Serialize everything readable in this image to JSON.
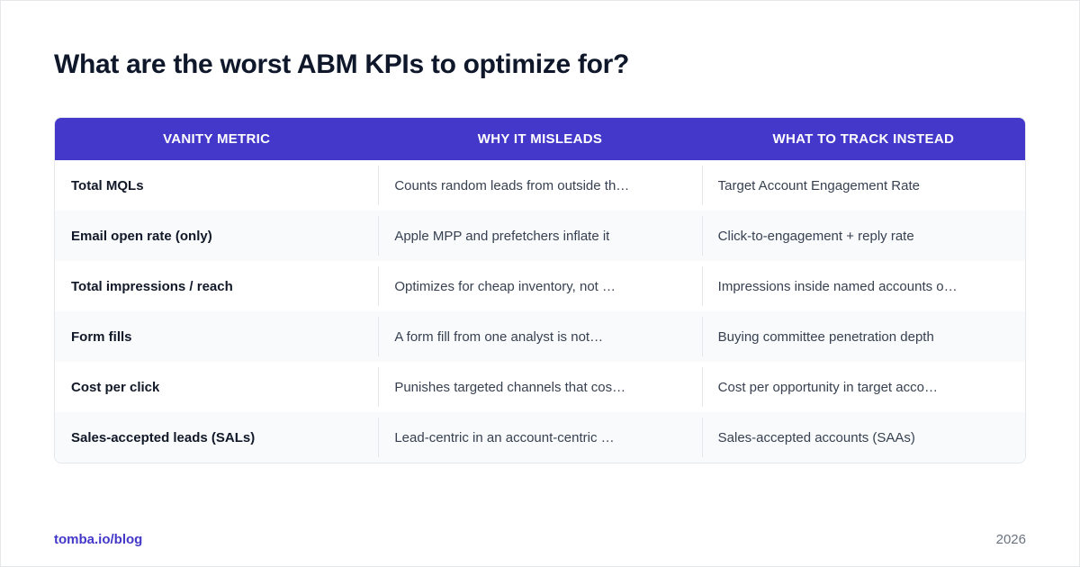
{
  "title": "What are the worst ABM KPIs to optimize for?",
  "table": {
    "headers": [
      "VANITY METRIC",
      "WHY IT MISLEADS",
      "WHAT TO TRACK INSTEAD"
    ],
    "rows": [
      [
        "Total MQLs",
        "Counts random leads from outside th…",
        "Target Account Engagement Rate"
      ],
      [
        "Email open rate (only)",
        "Apple MPP and prefetchers inflate it",
        "Click-to-engagement + reply rate"
      ],
      [
        "Total impressions / reach",
        "Optimizes for cheap inventory, not …",
        "Impressions inside named accounts o…"
      ],
      [
        "Form fills",
        "A form fill from one analyst is not…",
        "Buying committee penetration depth"
      ],
      [
        "Cost per click",
        "Punishes targeted channels that cos…",
        "Cost per opportunity in target acco…"
      ],
      [
        "Sales-accepted leads (SALs)",
        "Lead-centric in an account-centric …",
        "Sales-accepted accounts (SAAs)"
      ]
    ]
  },
  "footer": {
    "link": "tomba.io/blog",
    "year": "2026"
  },
  "colors": {
    "accent": "#4338ca",
    "title": "#0f172a",
    "row_alt": "#f8fafc"
  }
}
